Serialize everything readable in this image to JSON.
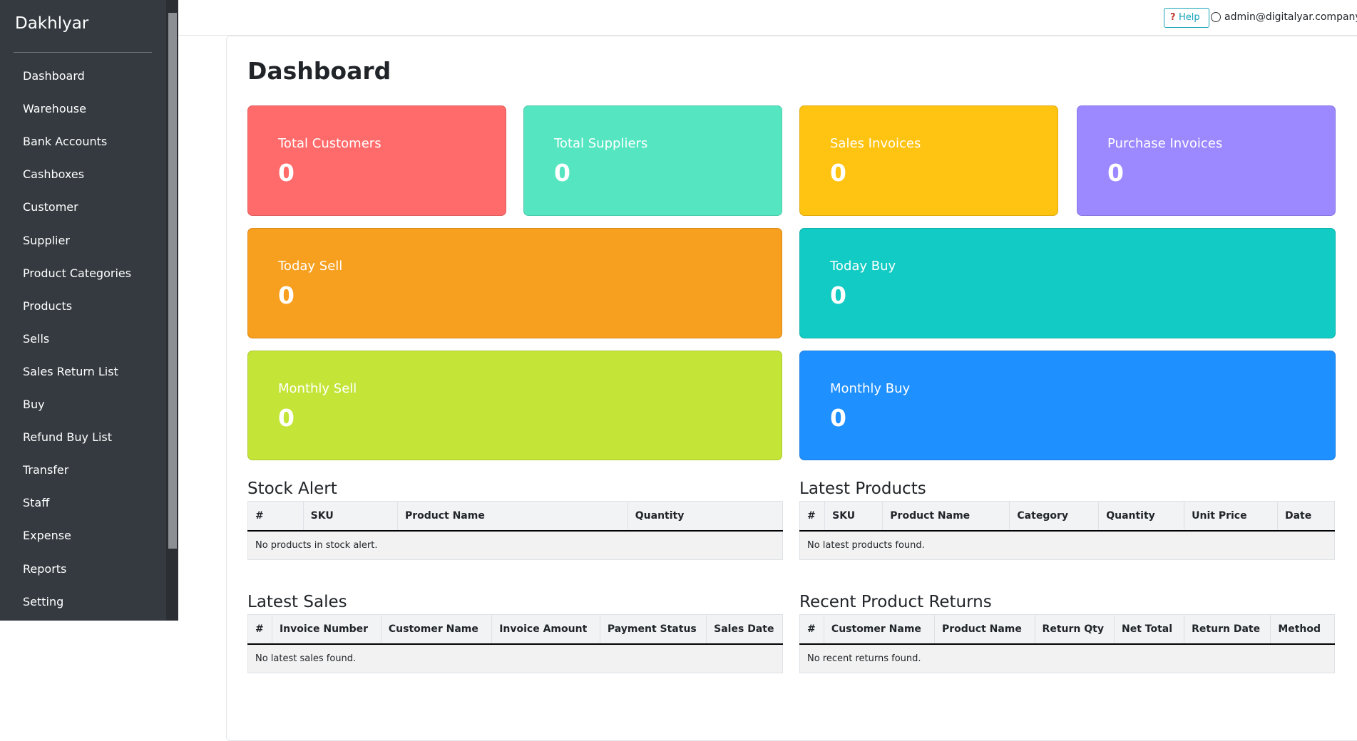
{
  "sidebar": {
    "brand": "Dakhlyar",
    "menu": [
      "Dashboard",
      "Warehouse",
      "Bank Accounts",
      "Cashboxes",
      "Customer",
      "Supplier",
      "Product Categories",
      "Products",
      "Sells",
      "Sales Return List",
      "Buy",
      "Refund Buy List",
      "Transfer",
      "Staff",
      "Expense",
      "Reports",
      "Setting"
    ]
  },
  "header": {
    "help": "Help",
    "user": "admin@digitalyar.company"
  },
  "title": "Dashboard",
  "cards": [
    {
      "label": "Total Customers",
      "value": 0,
      "color": "#ff6b6b"
    },
    {
      "label": "Total Suppliers",
      "value": 0,
      "color": "#55e6c1"
    },
    {
      "label": "Sales Invoices",
      "value": 0,
      "color": "#ffc312"
    },
    {
      "label": "Purchase Invoices",
      "value": 0,
      "color": "#9c88ff"
    },
    {
      "label": "Today Sell",
      "value": 0,
      "color": "#f79f1f"
    },
    {
      "label": "Today Buy",
      "value": 0,
      "color": "#12cbc4"
    },
    {
      "label": "Monthly Sell",
      "value": 0,
      "color": "#c4e538"
    },
    {
      "label": "Monthly Buy",
      "value": 0,
      "color": "#1e90ff"
    }
  ],
  "tables": [
    {
      "title": "Stock Alert",
      "columns": [
        "#",
        "SKU",
        "Product Name",
        "Quantity"
      ],
      "empty": "No products in stock alert."
    },
    {
      "title": "Latest Products",
      "columns": [
        "#",
        "SKU",
        "Product Name",
        "Category",
        "Quantity",
        "Unit Price",
        "Date"
      ],
      "empty": "No latest products found."
    },
    {
      "title": "Latest Sales",
      "columns": [
        "#",
        "Invoice Number",
        "Customer Name",
        "Invoice Amount",
        "Payment Status",
        "Sales Date"
      ],
      "empty": "No latest sales found."
    },
    {
      "title": "Recent Product Returns",
      "columns": [
        "#",
        "Customer Name",
        "Product Name",
        "Return Qty",
        "Net Total",
        "Return Date",
        "Method"
      ],
      "empty": "No recent returns found."
    }
  ]
}
